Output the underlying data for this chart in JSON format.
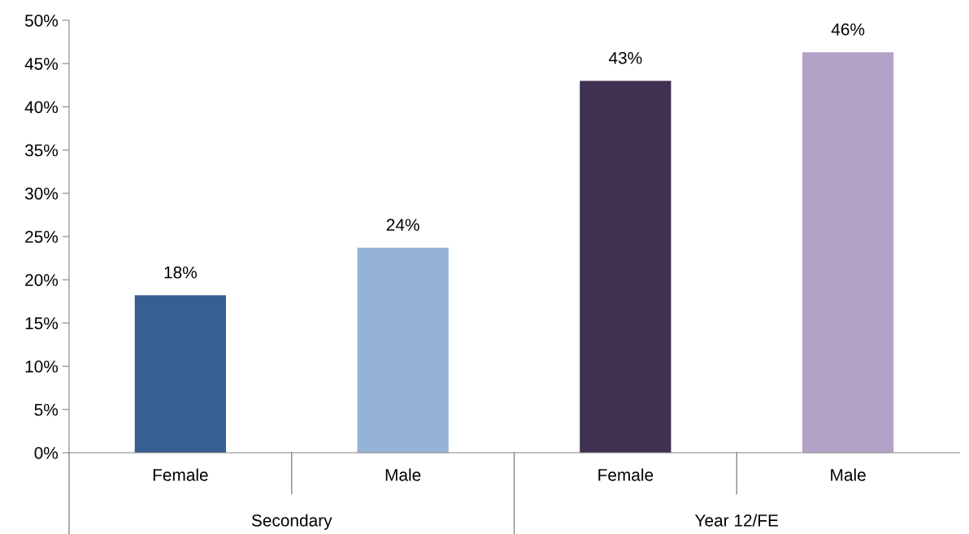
{
  "chart_data": {
    "type": "bar",
    "categories": [
      "Female",
      "Male",
      "Female",
      "Male"
    ],
    "values": [
      18.2,
      23.7,
      43.0,
      46.3
    ],
    "colors": [
      "#376092",
      "#95b3d7",
      "#403151",
      "#b2a2c7"
    ],
    "value_labels": [
      "18%",
      "24%",
      "43%",
      "46%"
    ],
    "annotations": [
      "Secondary",
      "Year 12/FE"
    ],
    "ylim": [
      0,
      50
    ],
    "yticks": [
      {
        "value": 0,
        "label": "0%"
      },
      {
        "value": 5,
        "label": "5%"
      },
      {
        "value": 10,
        "label": "10%"
      },
      {
        "value": 15,
        "label": "15%"
      },
      {
        "value": 20,
        "label": "20%"
      },
      {
        "value": 25,
        "label": "25%"
      },
      {
        "value": 30,
        "label": "30%"
      },
      {
        "value": 35,
        "label": "35%"
      },
      {
        "value": 40,
        "label": "40%"
      },
      {
        "value": 45,
        "label": "45%"
      },
      {
        "value": 50,
        "label": "50%"
      }
    ],
    "grid": false,
    "legend": false
  }
}
